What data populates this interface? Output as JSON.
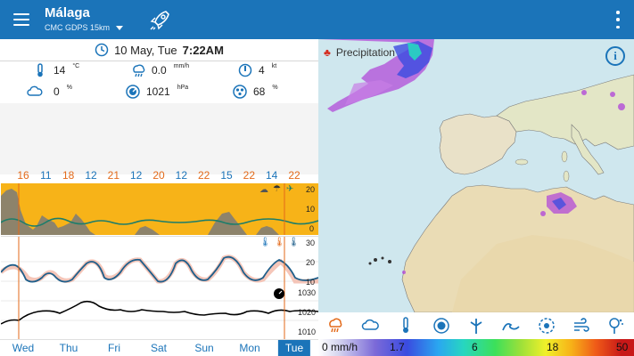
{
  "header": {
    "location": "Málaga",
    "model": "CMC GDPS 15km"
  },
  "current": {
    "date": "10 May,  Tue",
    "time": "7:22AM",
    "temp_value": "14",
    "temp_unit": "°C",
    "precip_value": "0.0",
    "precip_unit": "mm/h",
    "wind_value": "4",
    "wind_unit": "kt",
    "cloud_value": "0",
    "cloud_unit": "%",
    "pressure_value": "1021",
    "pressure_unit": "hPa",
    "humidity_value": "68",
    "humidity_unit": "%"
  },
  "hour_values": [
    {
      "v": "16",
      "c": "orange"
    },
    {
      "v": "11",
      "c": "blue"
    },
    {
      "v": "18",
      "c": "orange"
    },
    {
      "v": "12",
      "c": "blue"
    },
    {
      "v": "21",
      "c": "orange"
    },
    {
      "v": "12",
      "c": "blue"
    },
    {
      "v": "20",
      "c": "orange"
    },
    {
      "v": "12",
      "c": "blue"
    },
    {
      "v": "22",
      "c": "orange"
    },
    {
      "v": "15",
      "c": "blue"
    },
    {
      "v": "22",
      "c": "orange"
    },
    {
      "v": "14",
      "c": "blue"
    },
    {
      "v": "22",
      "c": "orange"
    }
  ],
  "axis_top": [
    "20",
    "10",
    "0"
  ],
  "axis_temp": [
    "30",
    "20",
    "10"
  ],
  "axis_pressure": [
    "1030",
    "1020",
    "1010"
  ],
  "days": [
    "Wed",
    "Thu",
    "Fri",
    "Sat",
    "Sun",
    "Mon",
    "Tue"
  ],
  "active_day": "Tue",
  "map": {
    "title": "Precipitation",
    "info": "i"
  },
  "layers": [
    "rain-icon",
    "cloud-icon",
    "thermometer-icon",
    "pressure-gauge-icon",
    "wind-turbine-icon",
    "wave-icon",
    "storm-icon",
    "wind-gust-icon",
    "tree-pollen-icon"
  ],
  "legend": {
    "unit_label": "0 mm/h",
    "ticks": [
      "1.7",
      "6",
      "18",
      "50"
    ]
  },
  "colors": {
    "brand": "#1b74b9",
    "accent": "#f7b318",
    "highlight": "#e36a1a"
  }
}
